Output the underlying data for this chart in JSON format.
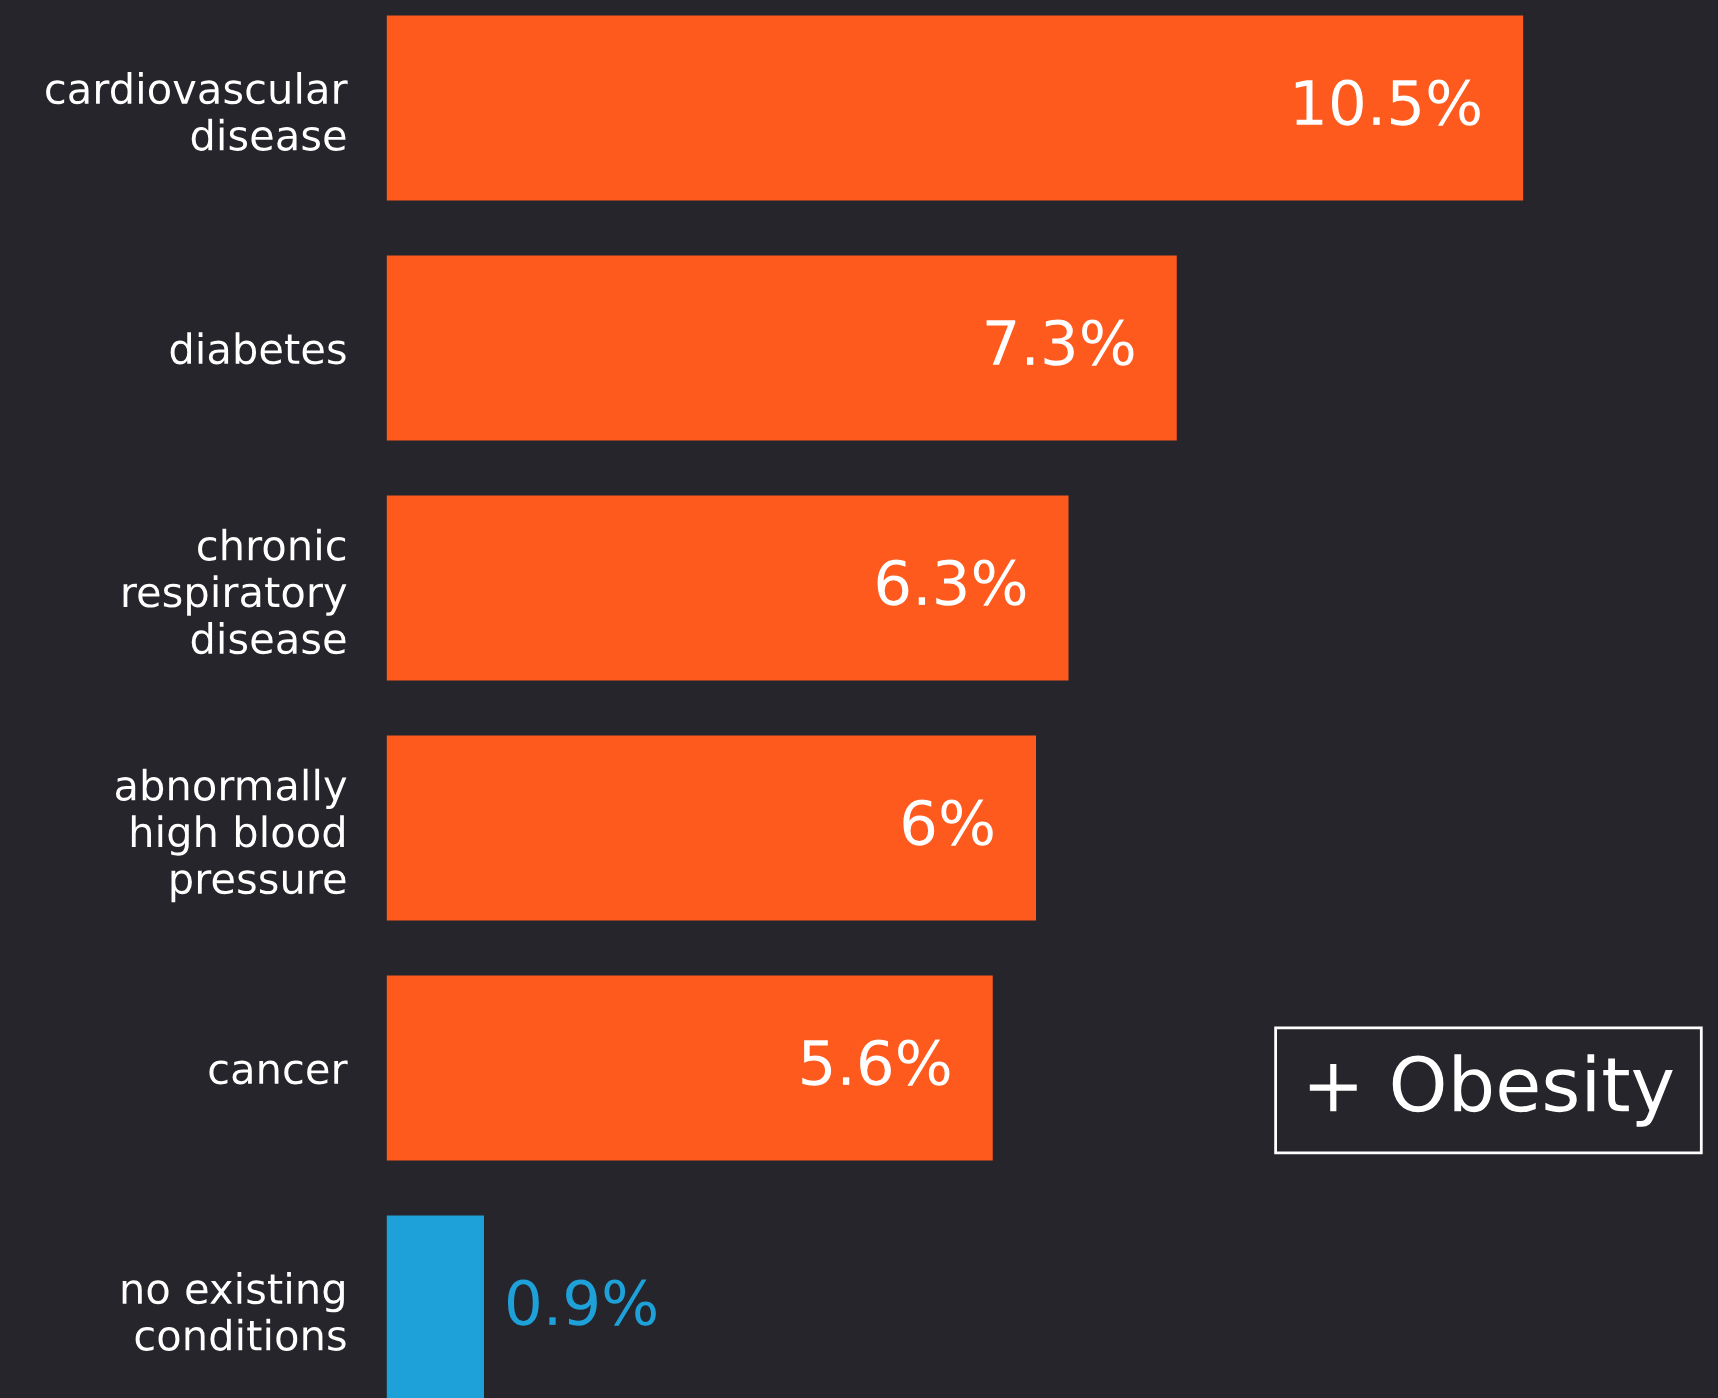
{
  "chart_data": {
    "type": "bar",
    "orientation": "horizontal",
    "categories": [
      "cardiovascular\ndisease",
      "diabetes",
      "chronic\nrespiratory\ndisease",
      "abnormally\nhigh blood\npressure",
      "cancer",
      "no existing\nconditions"
    ],
    "values": [
      10.5,
      7.3,
      6.3,
      6,
      5.6,
      0.9
    ],
    "value_labels": [
      "10.5%",
      "7.3%",
      "6.3%",
      "6%",
      "5.6%",
      "0.9%"
    ],
    "colors": [
      "#ff5a1e",
      "#ff5a1e",
      "#ff5a1e",
      "#ff5a1e",
      "#ff5a1e",
      "#1ea0d8"
    ],
    "xlim": [
      0,
      12.3
    ],
    "tick_labels": "y",
    "grid": false,
    "legend": false,
    "annotations": [
      "+ Obesity"
    ]
  }
}
